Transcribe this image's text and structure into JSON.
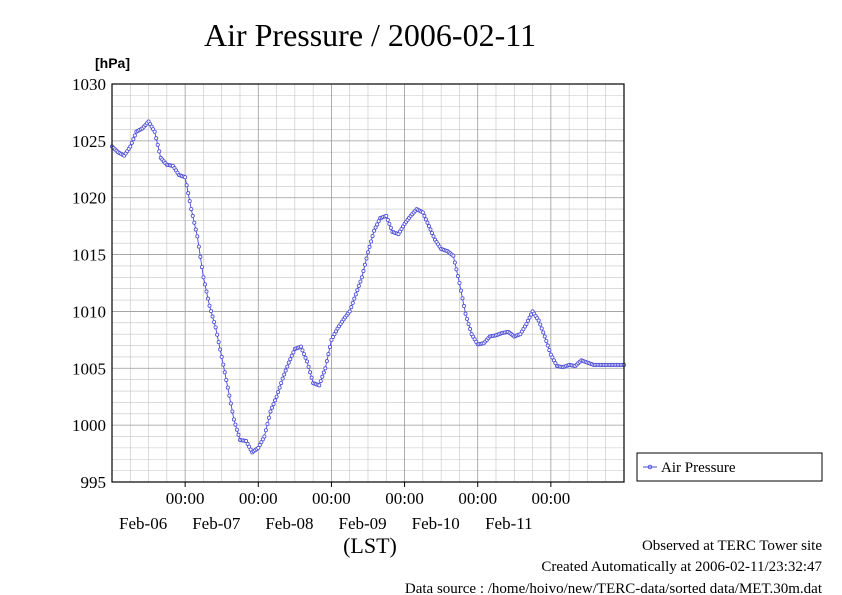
{
  "chart_data": {
    "type": "line",
    "title": "Air Pressure / 2006-02-11",
    "ylabel": "[hPa]",
    "xlabel": "(LST)",
    "x_start": "2006-02-05T00:00",
    "x_end": "2006-02-11T24:00",
    "ylim": [
      995,
      1030
    ],
    "yticks": [
      995,
      1000,
      1005,
      1010,
      1015,
      1020,
      1025,
      1030
    ],
    "y_minor_step": 1,
    "xtick_time_label": "00:00",
    "xtick_dates": [
      "Feb-06",
      "Feb-07",
      "Feb-08",
      "Feb-09",
      "Feb-10",
      "Feb-11"
    ],
    "grid": true,
    "legend": "right",
    "series": [
      {
        "name": "Air Pressure",
        "color": "#4b4bd6",
        "marker": "circle",
        "x": [
          "2006-02-05T00:00",
          "2006-02-05T02:00",
          "2006-02-05T04:00",
          "2006-02-05T06:00",
          "2006-02-05T08:00",
          "2006-02-05T10:00",
          "2006-02-05T12:00",
          "2006-02-05T14:00",
          "2006-02-05T16:00",
          "2006-02-05T18:00",
          "2006-02-05T20:00",
          "2006-02-05T22:00",
          "2006-02-06T00:00",
          "2006-02-06T02:00",
          "2006-02-06T04:00",
          "2006-02-06T06:00",
          "2006-02-06T08:00",
          "2006-02-06T10:00",
          "2006-02-06T12:00",
          "2006-02-06T14:00",
          "2006-02-06T16:00",
          "2006-02-06T18:00",
          "2006-02-06T20:00",
          "2006-02-06T22:00",
          "2006-02-07T00:00",
          "2006-02-07T02:00",
          "2006-02-07T04:00",
          "2006-02-07T06:00",
          "2006-02-07T08:00",
          "2006-02-07T10:00",
          "2006-02-07T12:00",
          "2006-02-07T14:00",
          "2006-02-07T16:00",
          "2006-02-07T18:00",
          "2006-02-07T20:00",
          "2006-02-07T22:00",
          "2006-02-08T00:00",
          "2006-02-08T02:00",
          "2006-02-08T04:00",
          "2006-02-08T06:00",
          "2006-02-08T08:00",
          "2006-02-08T10:00",
          "2006-02-08T12:00",
          "2006-02-08T14:00",
          "2006-02-08T16:00",
          "2006-02-08T18:00",
          "2006-02-08T20:00",
          "2006-02-08T22:00",
          "2006-02-09T00:00",
          "2006-02-09T02:00",
          "2006-02-09T04:00",
          "2006-02-09T06:00",
          "2006-02-09T08:00",
          "2006-02-09T10:00",
          "2006-02-09T12:00",
          "2006-02-09T14:00",
          "2006-02-09T16:00",
          "2006-02-09T18:00",
          "2006-02-09T20:00",
          "2006-02-09T22:00",
          "2006-02-10T00:00",
          "2006-02-10T02:00",
          "2006-02-10T04:00",
          "2006-02-10T06:00",
          "2006-02-10T08:00",
          "2006-02-10T10:00",
          "2006-02-10T12:00",
          "2006-02-10T14:00",
          "2006-02-10T16:00",
          "2006-02-10T18:00",
          "2006-02-10T20:00",
          "2006-02-10T22:00",
          "2006-02-11T00:00",
          "2006-02-11T02:00",
          "2006-02-11T04:00",
          "2006-02-11T06:00",
          "2006-02-11T08:00",
          "2006-02-11T10:00",
          "2006-02-11T12:00",
          "2006-02-11T14:00",
          "2006-02-11T16:00",
          "2006-02-11T18:00",
          "2006-02-11T20:00",
          "2006-02-11T22:00",
          "2006-02-11T24:00"
        ],
        "values": [
          1024.5,
          1024.0,
          1023.7,
          1024.5,
          1025.8,
          1026.1,
          1026.7,
          1025.8,
          1023.5,
          1022.9,
          1022.8,
          1022.0,
          1021.8,
          1019.0,
          1016.6,
          1013.0,
          1010.5,
          1008.6,
          1006.0,
          1003.3,
          1000.5,
          998.7,
          998.6,
          997.6,
          998.0,
          999.0,
          1001.2,
          1002.5,
          1004.1,
          1005.5,
          1006.7,
          1006.9,
          1005.6,
          1003.7,
          1003.5,
          1005.0,
          1007.5,
          1008.5,
          1009.3,
          1010.0,
          1011.5,
          1013.0,
          1015.2,
          1017.1,
          1018.2,
          1018.4,
          1017.0,
          1016.8,
          1017.7,
          1018.4,
          1019.0,
          1018.7,
          1017.5,
          1016.3,
          1015.5,
          1015.3,
          1014.9,
          1012.5,
          1009.8,
          1008.0,
          1007.1,
          1007.2,
          1007.8,
          1007.9,
          1008.1,
          1008.2,
          1007.8,
          1008.0,
          1008.9,
          1010.0,
          1009.2,
          1007.8,
          1006.2,
          1005.2,
          1005.1,
          1005.3,
          1005.2,
          1005.7,
          1005.5,
          1005.3,
          1005.3,
          1005.3,
          1005.3,
          1005.3,
          1005.3
        ]
      }
    ],
    "notes": [
      "Observed at TERC Tower site",
      "Created Automatically at 2006-02-11/23:32:47",
      "Data source : /home/hoivo/new/TERC-data/sorted  data/MET.30m.dat"
    ]
  }
}
